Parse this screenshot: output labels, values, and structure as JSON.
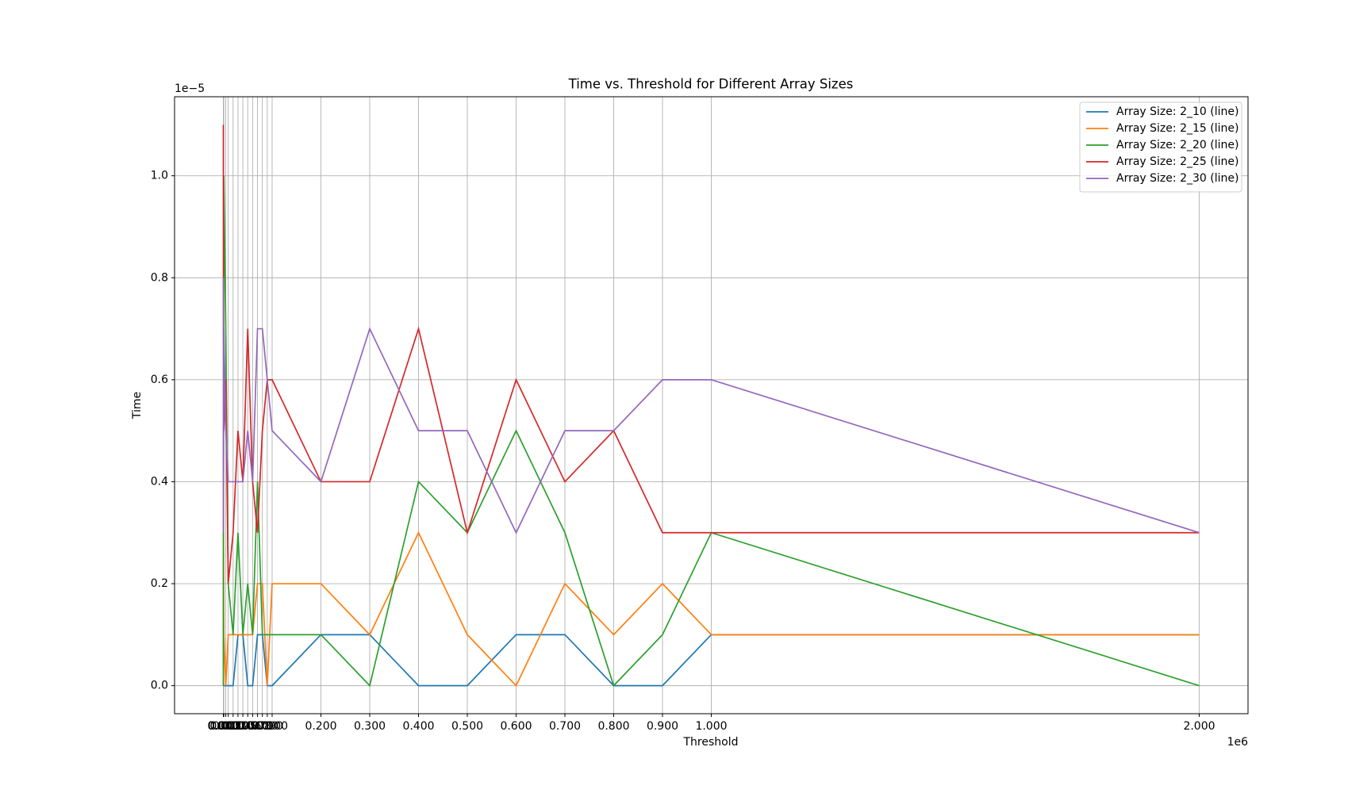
{
  "chart_data": {
    "type": "line",
    "title": "Time vs. Threshold for Different Array Sizes",
    "x_label": "Threshold",
    "y_label": "Time",
    "x_offset_text": "1e6",
    "y_offset_text": "1e−5",
    "x": [
      1e-05,
      0.0001,
      0.001,
      0.005,
      0.01,
      0.02,
      0.03,
      0.04,
      0.05,
      0.06,
      0.07,
      0.08,
      0.09,
      0.1,
      0.2,
      0.3,
      0.4,
      0.5,
      0.6,
      0.7,
      0.8,
      0.9,
      1.0,
      2.0
    ],
    "series": [
      {
        "name": "Array Size: 2_10 (line)",
        "color": "#1f77b4",
        "values": [
          0,
          0,
          0,
          0,
          0,
          0,
          0.1,
          0.1,
          0,
          0,
          0.1,
          0.1,
          0,
          0,
          0.1,
          0.1,
          0,
          0,
          0.1,
          0.1,
          0,
          0,
          0.1,
          0.1
        ]
      },
      {
        "name": "Array Size: 2_15 (line)",
        "color": "#ff7f0e",
        "values": [
          0,
          0.3,
          0.1,
          0,
          0.1,
          0.1,
          0.1,
          0.1,
          0.1,
          0.1,
          0.2,
          0.2,
          0,
          0.2,
          0.2,
          0.1,
          0.3,
          0.1,
          0,
          0.2,
          0.1,
          0.2,
          0.1,
          0.1
        ]
      },
      {
        "name": "Array Size: 2_20 (line)",
        "color": "#2ca02c",
        "values": [
          0,
          0.3,
          1.0,
          0.7,
          0.2,
          0.1,
          0.3,
          0.1,
          0.2,
          0.1,
          0.4,
          0.1,
          0.1,
          0.1,
          0.1,
          0,
          0.4,
          0.3,
          0.5,
          0.3,
          0,
          0.1,
          0.3,
          0
        ]
      },
      {
        "name": "Array Size: 2_25 (line)",
        "color": "#d62728",
        "values": [
          1.1,
          0.8,
          0.5,
          0.6,
          0.2,
          0.3,
          0.5,
          0.4,
          0.7,
          0.4,
          0.3,
          0.5,
          0.6,
          0.6,
          0.4,
          0.4,
          0.7,
          0.3,
          0.6,
          0.4,
          0.5,
          0.3,
          0.3,
          0.3
        ]
      },
      {
        "name": "Array Size: 2_30 (line)",
        "color": "#9467bd",
        "values": [
          0.8,
          0.3,
          0.7,
          0.5,
          0.4,
          0.4,
          0.4,
          0.4,
          0.5,
          0.4,
          0.7,
          0.7,
          0.6,
          0.5,
          0.4,
          0.7,
          0.5,
          0.5,
          0.3,
          0.5,
          0.5,
          0.6,
          0.6,
          0.3
        ]
      }
    ],
    "xlim": [
      -0.1,
      2.1
    ],
    "ylim": [
      -0.055,
      1.155
    ],
    "xticks": [
      {
        "value": 1e-05,
        "label": "0.000"
      },
      {
        "value": 0.0001,
        "label": "0.000"
      },
      {
        "value": 0.001,
        "label": "0.001"
      },
      {
        "value": 0.005,
        "label": "0.005"
      },
      {
        "value": 0.01,
        "label": "0.010"
      },
      {
        "value": 0.02,
        "label": "0.020"
      },
      {
        "value": 0.03,
        "label": "0.030"
      },
      {
        "value": 0.04,
        "label": "0.040"
      },
      {
        "value": 0.05,
        "label": "0.050"
      },
      {
        "value": 0.06,
        "label": "0.060"
      },
      {
        "value": 0.07,
        "label": "0.070"
      },
      {
        "value": 0.08,
        "label": "0.080"
      },
      {
        "value": 0.09,
        "label": "0.090"
      },
      {
        "value": 0.1,
        "label": "0.100"
      },
      {
        "value": 0.2,
        "label": "0.200"
      },
      {
        "value": 0.3,
        "label": "0.300"
      },
      {
        "value": 0.4,
        "label": "0.400"
      },
      {
        "value": 0.5,
        "label": "0.500"
      },
      {
        "value": 0.6,
        "label": "0.600"
      },
      {
        "value": 0.7,
        "label": "0.700"
      },
      {
        "value": 0.8,
        "label": "0.800"
      },
      {
        "value": 0.9,
        "label": "0.900"
      },
      {
        "value": 1.0,
        "label": "1.000"
      },
      {
        "value": 2.0,
        "label": "2.000"
      }
    ],
    "yticks": [
      {
        "value": 0,
        "label": "0.0"
      },
      0.2,
      0.4,
      0.6,
      0.8,
      {
        "value": 1.0,
        "label": "1.0"
      }
    ],
    "grid": true,
    "legend": "upper right"
  }
}
